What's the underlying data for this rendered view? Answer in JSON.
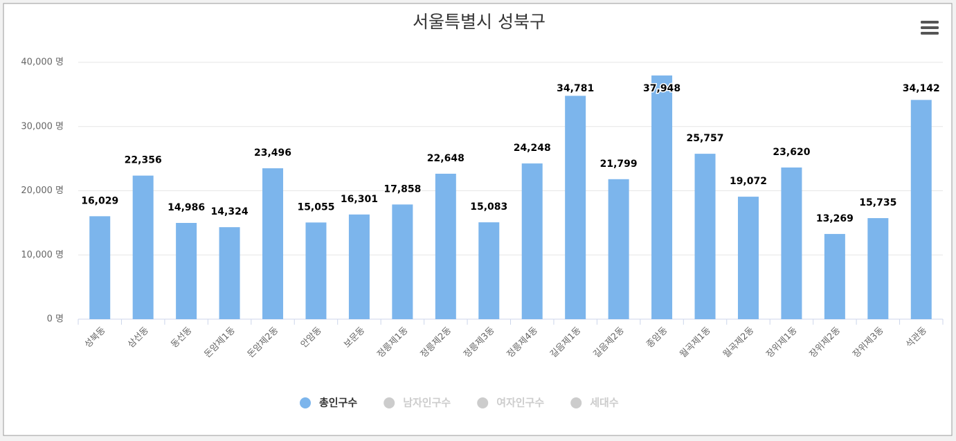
{
  "chart_data": {
    "type": "bar",
    "title": "서울특별시 성북구",
    "categories": [
      "성북동",
      "삼선동",
      "동선동",
      "돈암제1동",
      "돈암제2동",
      "안암동",
      "보문동",
      "정릉제1동",
      "정릉제2동",
      "정릉제3동",
      "정릉제4동",
      "길음제1동",
      "길음제2동",
      "종암동",
      "월곡제1동",
      "월곡제2동",
      "장위제1동",
      "장위제2동",
      "장위제3동",
      "석관동"
    ],
    "series": [
      {
        "name": "총인구수",
        "color": "#7cb5ec",
        "values": [
          16029,
          22356,
          14986,
          14324,
          23496,
          15055,
          16301,
          17858,
          22648,
          15083,
          24248,
          34781,
          21799,
          37948,
          25757,
          19072,
          23620,
          13269,
          15735,
          34142
        ],
        "value_labels": [
          "16,029",
          "22,356",
          "14,986",
          "14,324",
          "23,496",
          "15,055",
          "16,301",
          "17,858",
          "22,648",
          "15,083",
          "24,248",
          "34,781",
          "21,799",
          "37,948",
          "25,757",
          "19,072",
          "23,620",
          "13,269",
          "15,735",
          "34,142"
        ]
      }
    ],
    "hidden_series": [
      {
        "name": "남자인구수"
      },
      {
        "name": "여자인구수"
      },
      {
        "name": "세대수"
      }
    ],
    "ylim": [
      0,
      40000
    ],
    "yticks": [
      {
        "value": 0,
        "label": "0 명"
      },
      {
        "value": 10000,
        "label": "10,000 명"
      },
      {
        "value": 20000,
        "label": "20,000 명"
      },
      {
        "value": 30000,
        "label": "30,000 명"
      },
      {
        "value": 40000,
        "label": "40,000 명"
      }
    ],
    "grid": true
  }
}
